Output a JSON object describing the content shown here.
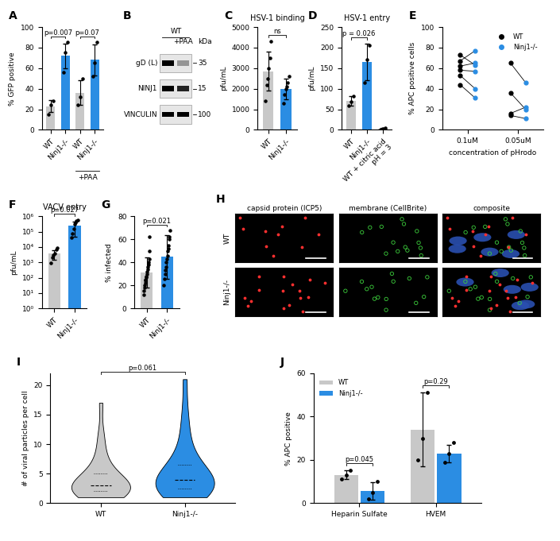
{
  "chart_data": [
    {
      "panel": "A",
      "type": "bar",
      "categories": [
        "WT",
        "Ninj1-/-",
        "WT",
        "Ninj1-/-"
      ],
      "values": [
        23,
        72,
        36,
        68
      ],
      "errors": [
        6,
        12,
        12,
        15
      ],
      "points": [
        [
          15,
          24,
          28
        ],
        [
          56,
          75,
          85
        ],
        [
          24,
          32,
          50
        ],
        [
          52,
          65,
          85
        ]
      ],
      "colors": [
        "#c8c8c8",
        "#2b8de3",
        "#c8c8c8",
        "#2b8de3"
      ],
      "y_label": "% GFP positive",
      "ylim": [
        0,
        100
      ],
      "yticks": [
        0,
        20,
        40,
        60,
        80,
        100
      ],
      "annotations": [
        {
          "text": "p=0.007",
          "between": [
            0,
            1
          ]
        },
        {
          "text": "p=0.07",
          "between": [
            2,
            3
          ]
        }
      ],
      "group_labels": [
        {
          "text": "+PAA",
          "between": [
            2,
            3
          ]
        }
      ]
    },
    {
      "panel": "B",
      "type": "blot",
      "header": "WT",
      "lane_labels": [
        null,
        "+PAA"
      ],
      "unit": "kDa",
      "rows": [
        {
          "label": "gD (L)",
          "marker": 35,
          "band_intensity": [
            1.0,
            0.35
          ]
        },
        {
          "label": "NINJ1",
          "marker": 15,
          "band_intensity": [
            1.0,
            0.85
          ]
        },
        {
          "label": "VINCULIN",
          "marker": 100,
          "band_intensity": [
            1.0,
            1.0
          ]
        }
      ]
    },
    {
      "panel": "C",
      "type": "bar",
      "title": "HSV-1 binding",
      "categories": [
        "WT",
        "Ninj1-/-"
      ],
      "values": [
        2850,
        2000
      ],
      "errors": [
        950,
        500
      ],
      "points": [
        [
          1400,
          2200,
          2500,
          3000,
          3500,
          4300
        ],
        [
          1300,
          1700,
          2000,
          2100,
          2300,
          2600
        ]
      ],
      "colors": [
        "#c8c8c8",
        "#2b8de3"
      ],
      "y_label": "pfu/mL",
      "ylim": [
        0,
        5000
      ],
      "yticks": [
        0,
        1000,
        2000,
        3000,
        4000,
        5000
      ],
      "annotations": [
        {
          "text": "ns",
          "between": [
            0,
            1
          ]
        }
      ]
    },
    {
      "panel": "D",
      "type": "bar",
      "title": "HSV-1 entry",
      "categories": [
        "WT",
        "Ninj1-/-",
        "WT + citric acid\npH = 3"
      ],
      "values": [
        70,
        165,
        3
      ],
      "errors": [
        12,
        45,
        1
      ],
      "points": [
        [
          58,
          68,
          82
        ],
        [
          115,
          170,
          205
        ],
        [
          1,
          2,
          4
        ]
      ],
      "colors": [
        "#c8c8c8",
        "#2b8de3",
        "#c8c8c8"
      ],
      "y_label": "pfu/mL",
      "ylim": [
        0,
        250
      ],
      "yticks": [
        0,
        50,
        100,
        150,
        200,
        250
      ],
      "annotations": [
        {
          "text": "p = 0.026",
          "between": [
            0,
            1
          ]
        }
      ]
    },
    {
      "panel": "E",
      "type": "paired_dot",
      "categories": [
        "0.1uM",
        "0.05uM"
      ],
      "x_label": "concentration of pHrodo",
      "y_label": "% APC positive cells",
      "ylim": [
        0,
        100
      ],
      "yticks": [
        0,
        20,
        40,
        60,
        80,
        100
      ],
      "legend": "upper right",
      "series": [
        {
          "name": "WT",
          "color": "#000000",
          "values": [
            [
              73,
              67,
              62,
              58,
              53,
              44
            ],
            [
              65,
              36,
              16,
              14
            ]
          ]
        },
        {
          "name": "Ninj1-/-",
          "color": "#2b8de3",
          "values": [
            [
              63,
              77,
              65,
              57,
              40,
              31
            ],
            [
              46,
              20,
              22,
              11
            ]
          ]
        }
      ]
    },
    {
      "panel": "F",
      "type": "bar",
      "title": "VACV entry",
      "log": "y",
      "categories": [
        "WT",
        "Ninj1-/-"
      ],
      "values": [
        4000,
        250000
      ],
      "errors": [
        2500,
        200000
      ],
      "points": [
        [
          900,
          2000,
          3000,
          4000,
          7000,
          9000
        ],
        [
          40000,
          80000,
          150000,
          300000,
          400000,
          500000,
          600000
        ]
      ],
      "colors": [
        "#c8c8c8",
        "#2b8de3"
      ],
      "y_label": "pfu/mL",
      "ylim": [
        1,
        1000000
      ],
      "yticks": [
        {
          "value": 1,
          "label": "10⁰"
        },
        {
          "value": 10,
          "label": "10¹"
        },
        {
          "value": 100,
          "label": "10²"
        },
        {
          "value": 1000,
          "label": "10³"
        },
        {
          "value": 10000,
          "label": "10⁴"
        },
        {
          "value": 100000,
          "label": "10⁵"
        },
        {
          "value": 1000000,
          "label": "10⁶"
        }
      ],
      "annotations": [
        {
          "text": "p=0.027",
          "between": [
            0,
            1
          ]
        }
      ]
    },
    {
      "panel": "G",
      "type": "bar",
      "categories": [
        "WT",
        "Ninj1-/-"
      ],
      "values": [
        31,
        45
      ],
      "errors": [
        13,
        19
      ],
      "points": [
        [
          12,
          15,
          18,
          20,
          22,
          24,
          25,
          27,
          28,
          30,
          32,
          34,
          36,
          38,
          40,
          43,
          50,
          62
        ],
        [
          20,
          26,
          30,
          33,
          36,
          40,
          43,
          46,
          50,
          52,
          55,
          60,
          62,
          68
        ]
      ],
      "colors": [
        "#c8c8c8",
        "#2b8de3"
      ],
      "y_label": "% infected",
      "ylim": [
        0,
        80
      ],
      "yticks": [
        0,
        20,
        40,
        60,
        80
      ],
      "annotations": [
        {
          "text": "p=0.021",
          "between": [
            0,
            1
          ]
        }
      ]
    },
    {
      "panel": "H",
      "type": "micrograph",
      "column_titles": [
        "capsid protein (ICP5)",
        "membrane (CellBrite)",
        "composite"
      ],
      "row_labels": [
        "WT",
        "Ninj1-/-"
      ]
    },
    {
      "panel": "I",
      "type": "violin",
      "categories": [
        "WT",
        "Ninj1-/-"
      ],
      "distributions": [
        [
          1,
          1,
          1,
          1,
          2,
          2,
          2,
          2,
          2,
          2,
          3,
          3,
          3,
          3,
          3,
          3,
          4,
          4,
          4,
          5,
          5,
          6,
          7,
          8,
          10,
          12,
          17
        ],
        [
          1,
          1,
          1,
          2,
          2,
          2,
          2,
          3,
          3,
          3,
          3,
          3,
          4,
          4,
          4,
          5,
          5,
          5,
          6,
          6,
          7,
          8,
          9,
          11,
          13,
          16,
          21
        ]
      ],
      "colors": [
        "#c8c8c8",
        "#2b8de3"
      ],
      "y_label": "# of viral particles per cell",
      "ylim": [
        0,
        22
      ],
      "yticks": [
        0,
        5,
        10,
        15,
        20
      ],
      "annotations": [
        {
          "text": "p=0.061",
          "between": [
            0,
            1
          ]
        }
      ]
    },
    {
      "panel": "J",
      "type": "grouped_bar",
      "categories": [
        "Heparin Sulfate",
        "HVEM"
      ],
      "series": [
        {
          "name": "WT",
          "color": "#c8c8c8",
          "values": [
            13,
            34
          ],
          "errors": [
            2,
            17
          ],
          "points": [
            [
              11,
              13,
              15
            ],
            [
              20,
              30,
              51
            ]
          ]
        },
        {
          "name": "Ninj1-/-",
          "color": "#2b8de3",
          "values": [
            5.5,
            23
          ],
          "errors": [
            4,
            4
          ],
          "points": [
            [
              2,
              5,
              10
            ],
            [
              19,
              23,
              28
            ]
          ]
        }
      ],
      "y_label": "% APC positive",
      "ylim": [
        0,
        60
      ],
      "yticks": [
        0,
        20,
        40,
        60
      ],
      "legend": "upper left",
      "annotations": [
        {
          "text": "p=0.045",
          "category": 0
        },
        {
          "text": "p=0.29",
          "category": 1
        }
      ]
    }
  ]
}
